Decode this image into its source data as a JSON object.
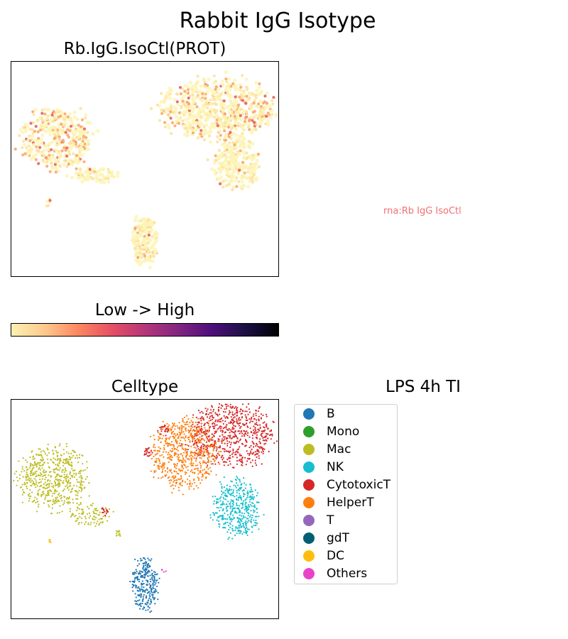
{
  "figure": {
    "title": "Rabbit IgG Isotype",
    "rna_note": "rna:Rb IgG IsoCtl",
    "rna_note_color": "#f07070"
  },
  "chart_data": [
    {
      "type": "scatter",
      "panel": "expression",
      "title": "Rb.IgG.IsoCtl(PROT)",
      "xlabel": "",
      "ylabel": "",
      "ticks": "none",
      "colormap": "magma_r",
      "colorbar_label": "Low  ->  High",
      "colorbar_colors": [
        "#fcf1b2",
        "#fec98d",
        "#fb8761",
        "#e55064",
        "#b5367a",
        "#822681",
        "#4e0f7b",
        "#1c1044",
        "#000004"
      ],
      "point_colors": {
        "low": "#fdf4b6",
        "mid": "#fde2a0",
        "high": "#f9a86d",
        "peak": "#e8605c"
      },
      "clusters": [
        {
          "name": "upper-right",
          "cx": 0.77,
          "cy": 0.78,
          "rx": 0.21,
          "ry": 0.14,
          "points": 620,
          "high_fraction": 0.22
        },
        {
          "name": "right-lower",
          "cx": 0.84,
          "cy": 0.52,
          "rx": 0.085,
          "ry": 0.12,
          "points": 240,
          "high_fraction": 0.05
        },
        {
          "name": "left",
          "cx": 0.17,
          "cy": 0.64,
          "rx": 0.13,
          "ry": 0.14,
          "points": 380,
          "high_fraction": 0.25
        },
        {
          "name": "left-tail",
          "cx": 0.31,
          "cy": 0.47,
          "rx": 0.08,
          "ry": 0.04,
          "points": 70,
          "high_fraction": 0.05
        },
        {
          "name": "bottom",
          "cx": 0.5,
          "cy": 0.16,
          "rx": 0.05,
          "ry": 0.11,
          "points": 180,
          "high_fraction": 0.12
        },
        {
          "name": "small",
          "cx": 0.14,
          "cy": 0.34,
          "rx": 0.01,
          "ry": 0.02,
          "points": 6,
          "high_fraction": 0.5
        }
      ]
    },
    {
      "type": "scatter",
      "panel": "celltype",
      "title": "Celltype",
      "legend_title": "LPS 4h TI",
      "legend_position": "right",
      "ticks": "none",
      "legend": [
        {
          "label": "B",
          "color": "#1f77b4"
        },
        {
          "label": "Mono",
          "color": "#2ca02c"
        },
        {
          "label": "Mac",
          "color": "#bcbd22"
        },
        {
          "label": "NK",
          "color": "#17becf"
        },
        {
          "label": "CytotoxicT",
          "color": "#d62728"
        },
        {
          "label": "HelperT",
          "color": "#ff7f0e"
        },
        {
          "label": "T",
          "color": "#9467bd"
        },
        {
          "label": "gdT",
          "color": "#005f73"
        },
        {
          "label": "DC",
          "color": "#ffbe0b"
        },
        {
          "label": "Others",
          "color": "#e843c6"
        }
      ],
      "clusters": [
        {
          "celltype": "CytotoxicT",
          "cx": 0.82,
          "cy": 0.84,
          "rx": 0.16,
          "ry": 0.14,
          "points": 700
        },
        {
          "celltype": "HelperT",
          "cx": 0.65,
          "cy": 0.75,
          "rx": 0.12,
          "ry": 0.16,
          "points": 600
        },
        {
          "celltype": "NK",
          "cx": 0.84,
          "cy": 0.5,
          "rx": 0.085,
          "ry": 0.13,
          "points": 420
        },
        {
          "celltype": "Mac",
          "cx": 0.16,
          "cy": 0.64,
          "rx": 0.13,
          "ry": 0.15,
          "points": 560
        },
        {
          "celltype": "Mac",
          "cx": 0.3,
          "cy": 0.47,
          "rx": 0.08,
          "ry": 0.05,
          "points": 90
        },
        {
          "celltype": "Mac",
          "cx": 0.4,
          "cy": 0.39,
          "rx": 0.012,
          "ry": 0.015,
          "points": 12
        },
        {
          "celltype": "B",
          "cx": 0.5,
          "cy": 0.16,
          "rx": 0.05,
          "ry": 0.12,
          "points": 280
        },
        {
          "celltype": "CytotoxicT",
          "cx": 0.51,
          "cy": 0.76,
          "rx": 0.018,
          "ry": 0.02,
          "points": 20
        },
        {
          "celltype": "CytotoxicT",
          "cx": 0.57,
          "cy": 0.86,
          "rx": 0.02,
          "ry": 0.025,
          "points": 20
        },
        {
          "celltype": "CytotoxicT",
          "cx": 0.35,
          "cy": 0.49,
          "rx": 0.012,
          "ry": 0.02,
          "points": 15
        },
        {
          "celltype": "Others",
          "cx": 0.57,
          "cy": 0.22,
          "rx": 0.01,
          "ry": 0.01,
          "points": 4
        },
        {
          "celltype": "DC",
          "cx": 0.14,
          "cy": 0.35,
          "rx": 0.008,
          "ry": 0.015,
          "points": 6
        }
      ]
    }
  ]
}
